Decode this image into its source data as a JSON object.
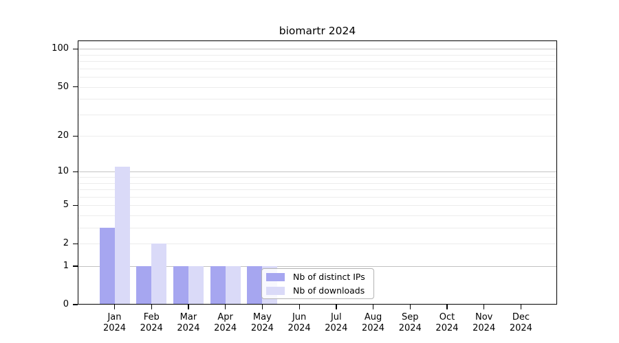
{
  "chart_data": {
    "type": "bar",
    "title": "biomartr 2024",
    "x_tick_months": [
      "Jan",
      "Feb",
      "Mar",
      "Apr",
      "May",
      "Jun",
      "Jul",
      "Aug",
      "Sep",
      "Oct",
      "Nov",
      "Dec"
    ],
    "x_tick_year": "2024",
    "y_ticks": [
      0,
      1,
      2,
      5,
      10,
      20,
      50,
      100
    ],
    "y_major_gridlines": [
      1,
      10,
      100
    ],
    "y_minor_gridlines": [
      2,
      3,
      4,
      5,
      6,
      7,
      8,
      9,
      20,
      30,
      40,
      50,
      60,
      70,
      80,
      90
    ],
    "y_scale": "log10(value+1)",
    "ylim": [
      0,
      115
    ],
    "grid": true,
    "legend_position": "inside lower-center",
    "series": [
      {
        "name": "Nb of distinct IPs",
        "color": "#a6a6f0",
        "values": [
          3,
          1,
          1,
          1,
          1,
          0,
          0,
          0,
          0,
          0,
          0,
          0
        ]
      },
      {
        "name": "Nb of downloads",
        "color": "#dadaf8",
        "values": [
          11,
          2,
          1,
          1,
          1,
          0,
          0,
          0,
          0,
          0,
          0,
          0
        ]
      }
    ]
  },
  "colors": {
    "plot_border": "#000000",
    "major_grid": "#c2c2c2",
    "minor_grid": "#ececec",
    "legend_border": "#b3b3b3"
  }
}
